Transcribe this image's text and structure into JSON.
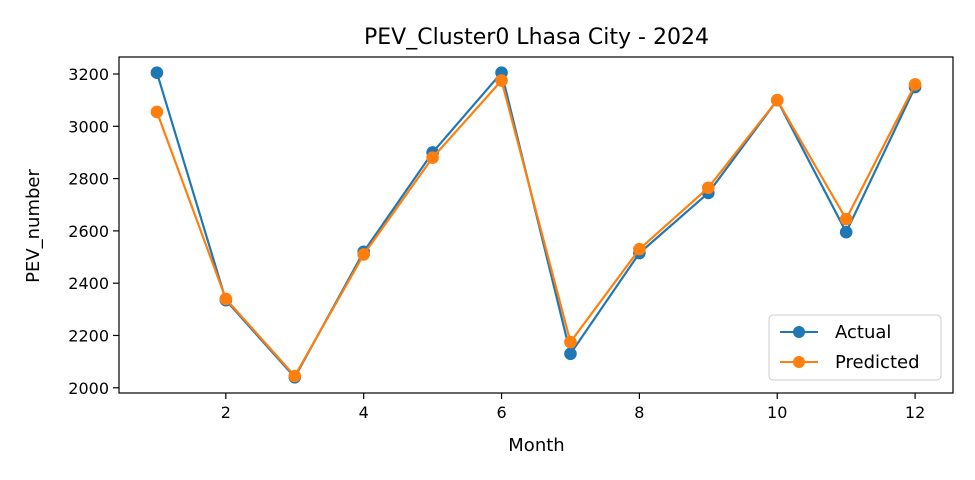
{
  "chart_data": {
    "type": "line",
    "title": "PEV_Cluster0 Lhasa City - 2024",
    "xlabel": "Month",
    "ylabel": "PEV_number",
    "x": [
      1,
      2,
      3,
      4,
      5,
      6,
      7,
      8,
      9,
      10,
      11,
      12
    ],
    "xlim": [
      0.45,
      12.55
    ],
    "ylim": [
      1980,
      3265
    ],
    "xticks": [
      2,
      4,
      6,
      8,
      10,
      12
    ],
    "yticks": [
      2000,
      2200,
      2400,
      2600,
      2800,
      3000,
      3200
    ],
    "series": [
      {
        "name": "Actual",
        "color": "#1f77b4",
        "values": [
          3205,
          2335,
          2040,
          2520,
          2900,
          3205,
          2130,
          2515,
          2745,
          3100,
          2595,
          3150
        ]
      },
      {
        "name": "Predicted",
        "color": "#ff7f0e",
        "values": [
          3055,
          2340,
          2045,
          2510,
          2880,
          3175,
          2175,
          2530,
          2765,
          3100,
          2645,
          3160
        ]
      }
    ],
    "legend": "lower-right",
    "grid": false
  }
}
